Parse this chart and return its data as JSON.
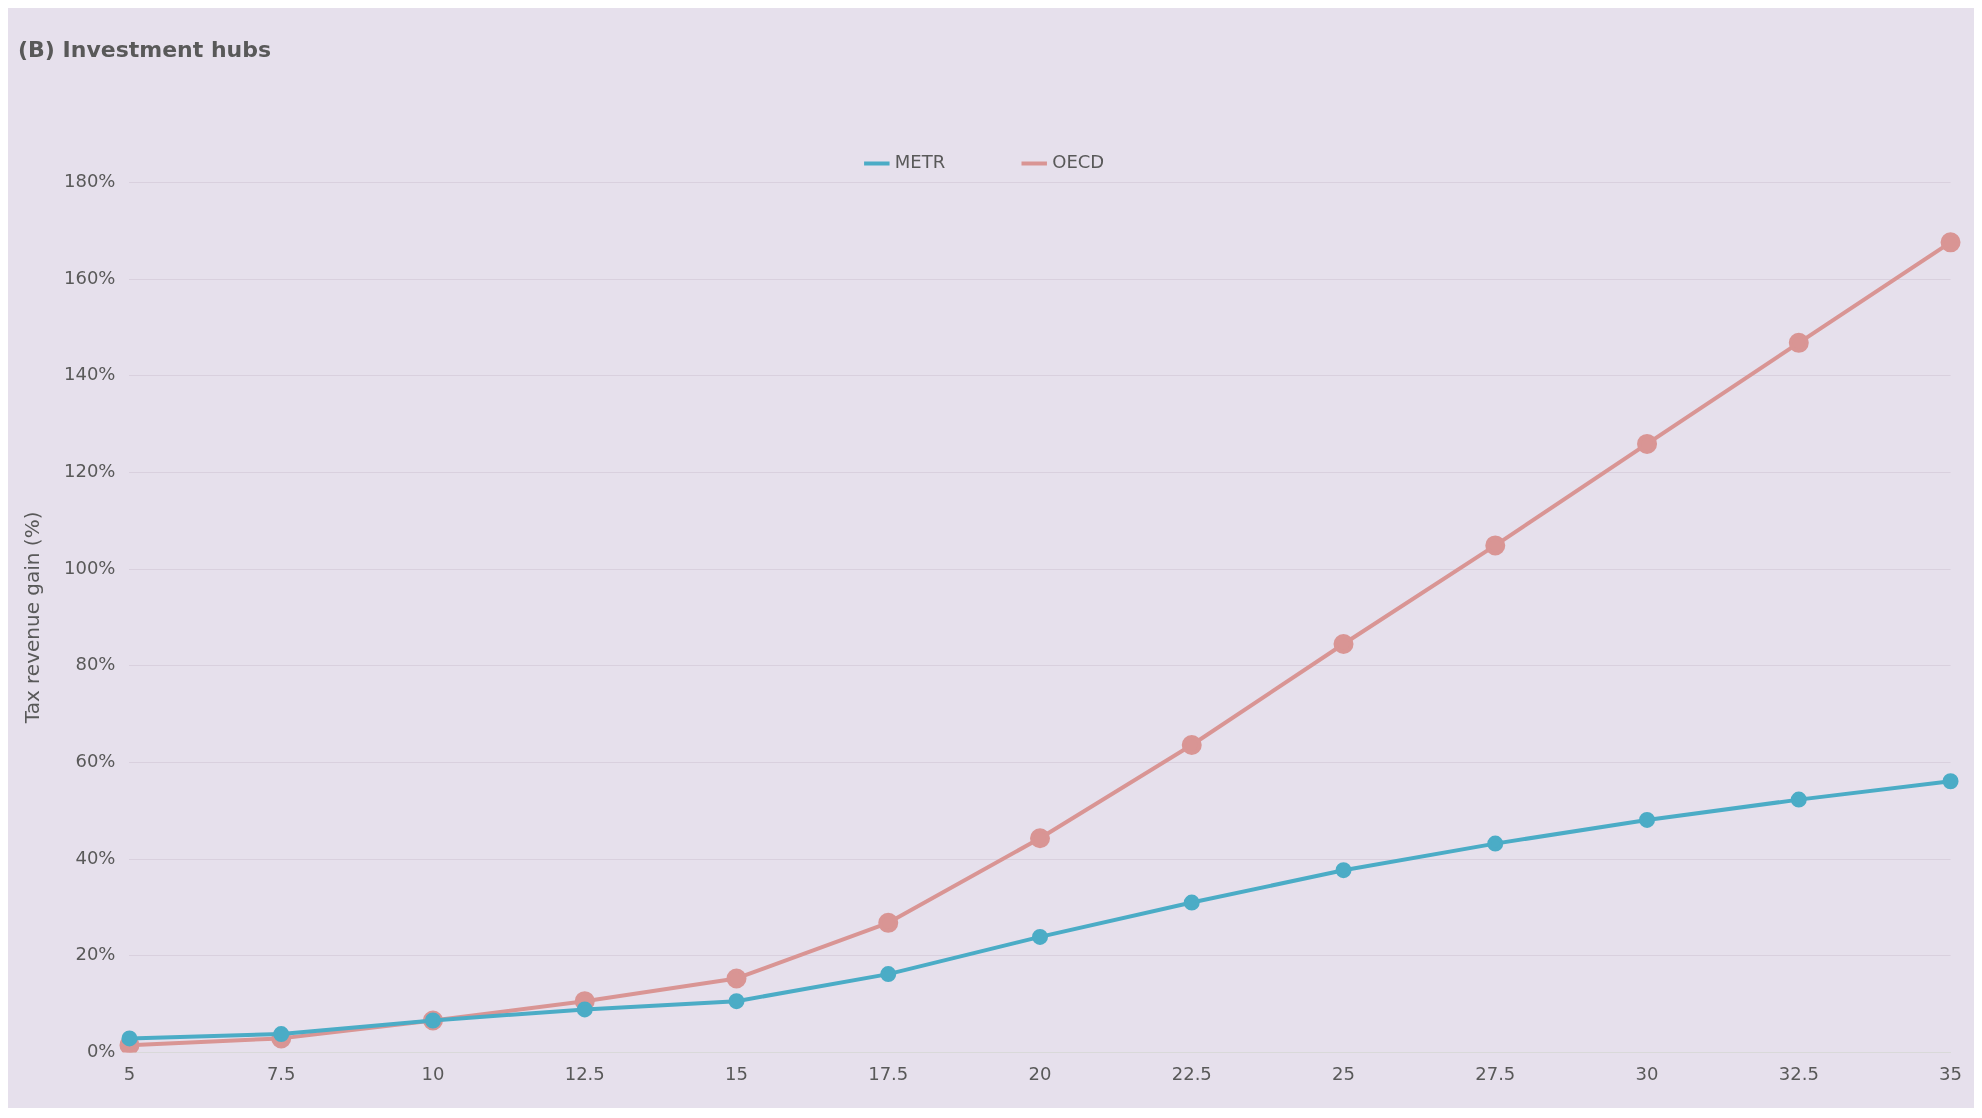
{
  "chart_data": {
    "type": "line",
    "title": "(B) Investment hubs",
    "ylabel": "Tax revenue gain (%)",
    "categories": [
      "5",
      "7.5",
      "10",
      "12.5",
      "15",
      "17.5",
      "20",
      "22.5",
      "25",
      "27.5",
      "30",
      "32.5",
      "35"
    ],
    "series": [
      {
        "name": "OECD",
        "color": "#d99594",
        "values": [
          1.5,
          2.9,
          6.6,
          10.6,
          15.3,
          26.8,
          44.3,
          63.6,
          84.5,
          104.9,
          125.9,
          146.8,
          167.6
        ]
      },
      {
        "name": "METR",
        "color": "#4bacc6",
        "values": [
          2.9,
          3.8,
          6.6,
          8.9,
          10.6,
          16.2,
          23.9,
          31.0,
          37.7,
          43.2,
          48.1,
          52.3,
          56.1
        ]
      }
    ],
    "ylim": [
      0,
      180
    ],
    "yticks": [
      {
        "value": 0,
        "label": "0%"
      },
      {
        "value": 20,
        "label": "20%"
      },
      {
        "value": 40,
        "label": "40%"
      },
      {
        "value": 60,
        "label": "60%"
      },
      {
        "value": 80,
        "label": "80%"
      },
      {
        "value": 100,
        "label": "100%"
      },
      {
        "value": 120,
        "label": "120%"
      },
      {
        "value": 140,
        "label": "140%"
      },
      {
        "value": 160,
        "label": "160%"
      },
      {
        "value": 180,
        "label": "180%"
      }
    ],
    "grid": "y",
    "legend": "top",
    "marker": "circle",
    "line_style": "solid"
  }
}
